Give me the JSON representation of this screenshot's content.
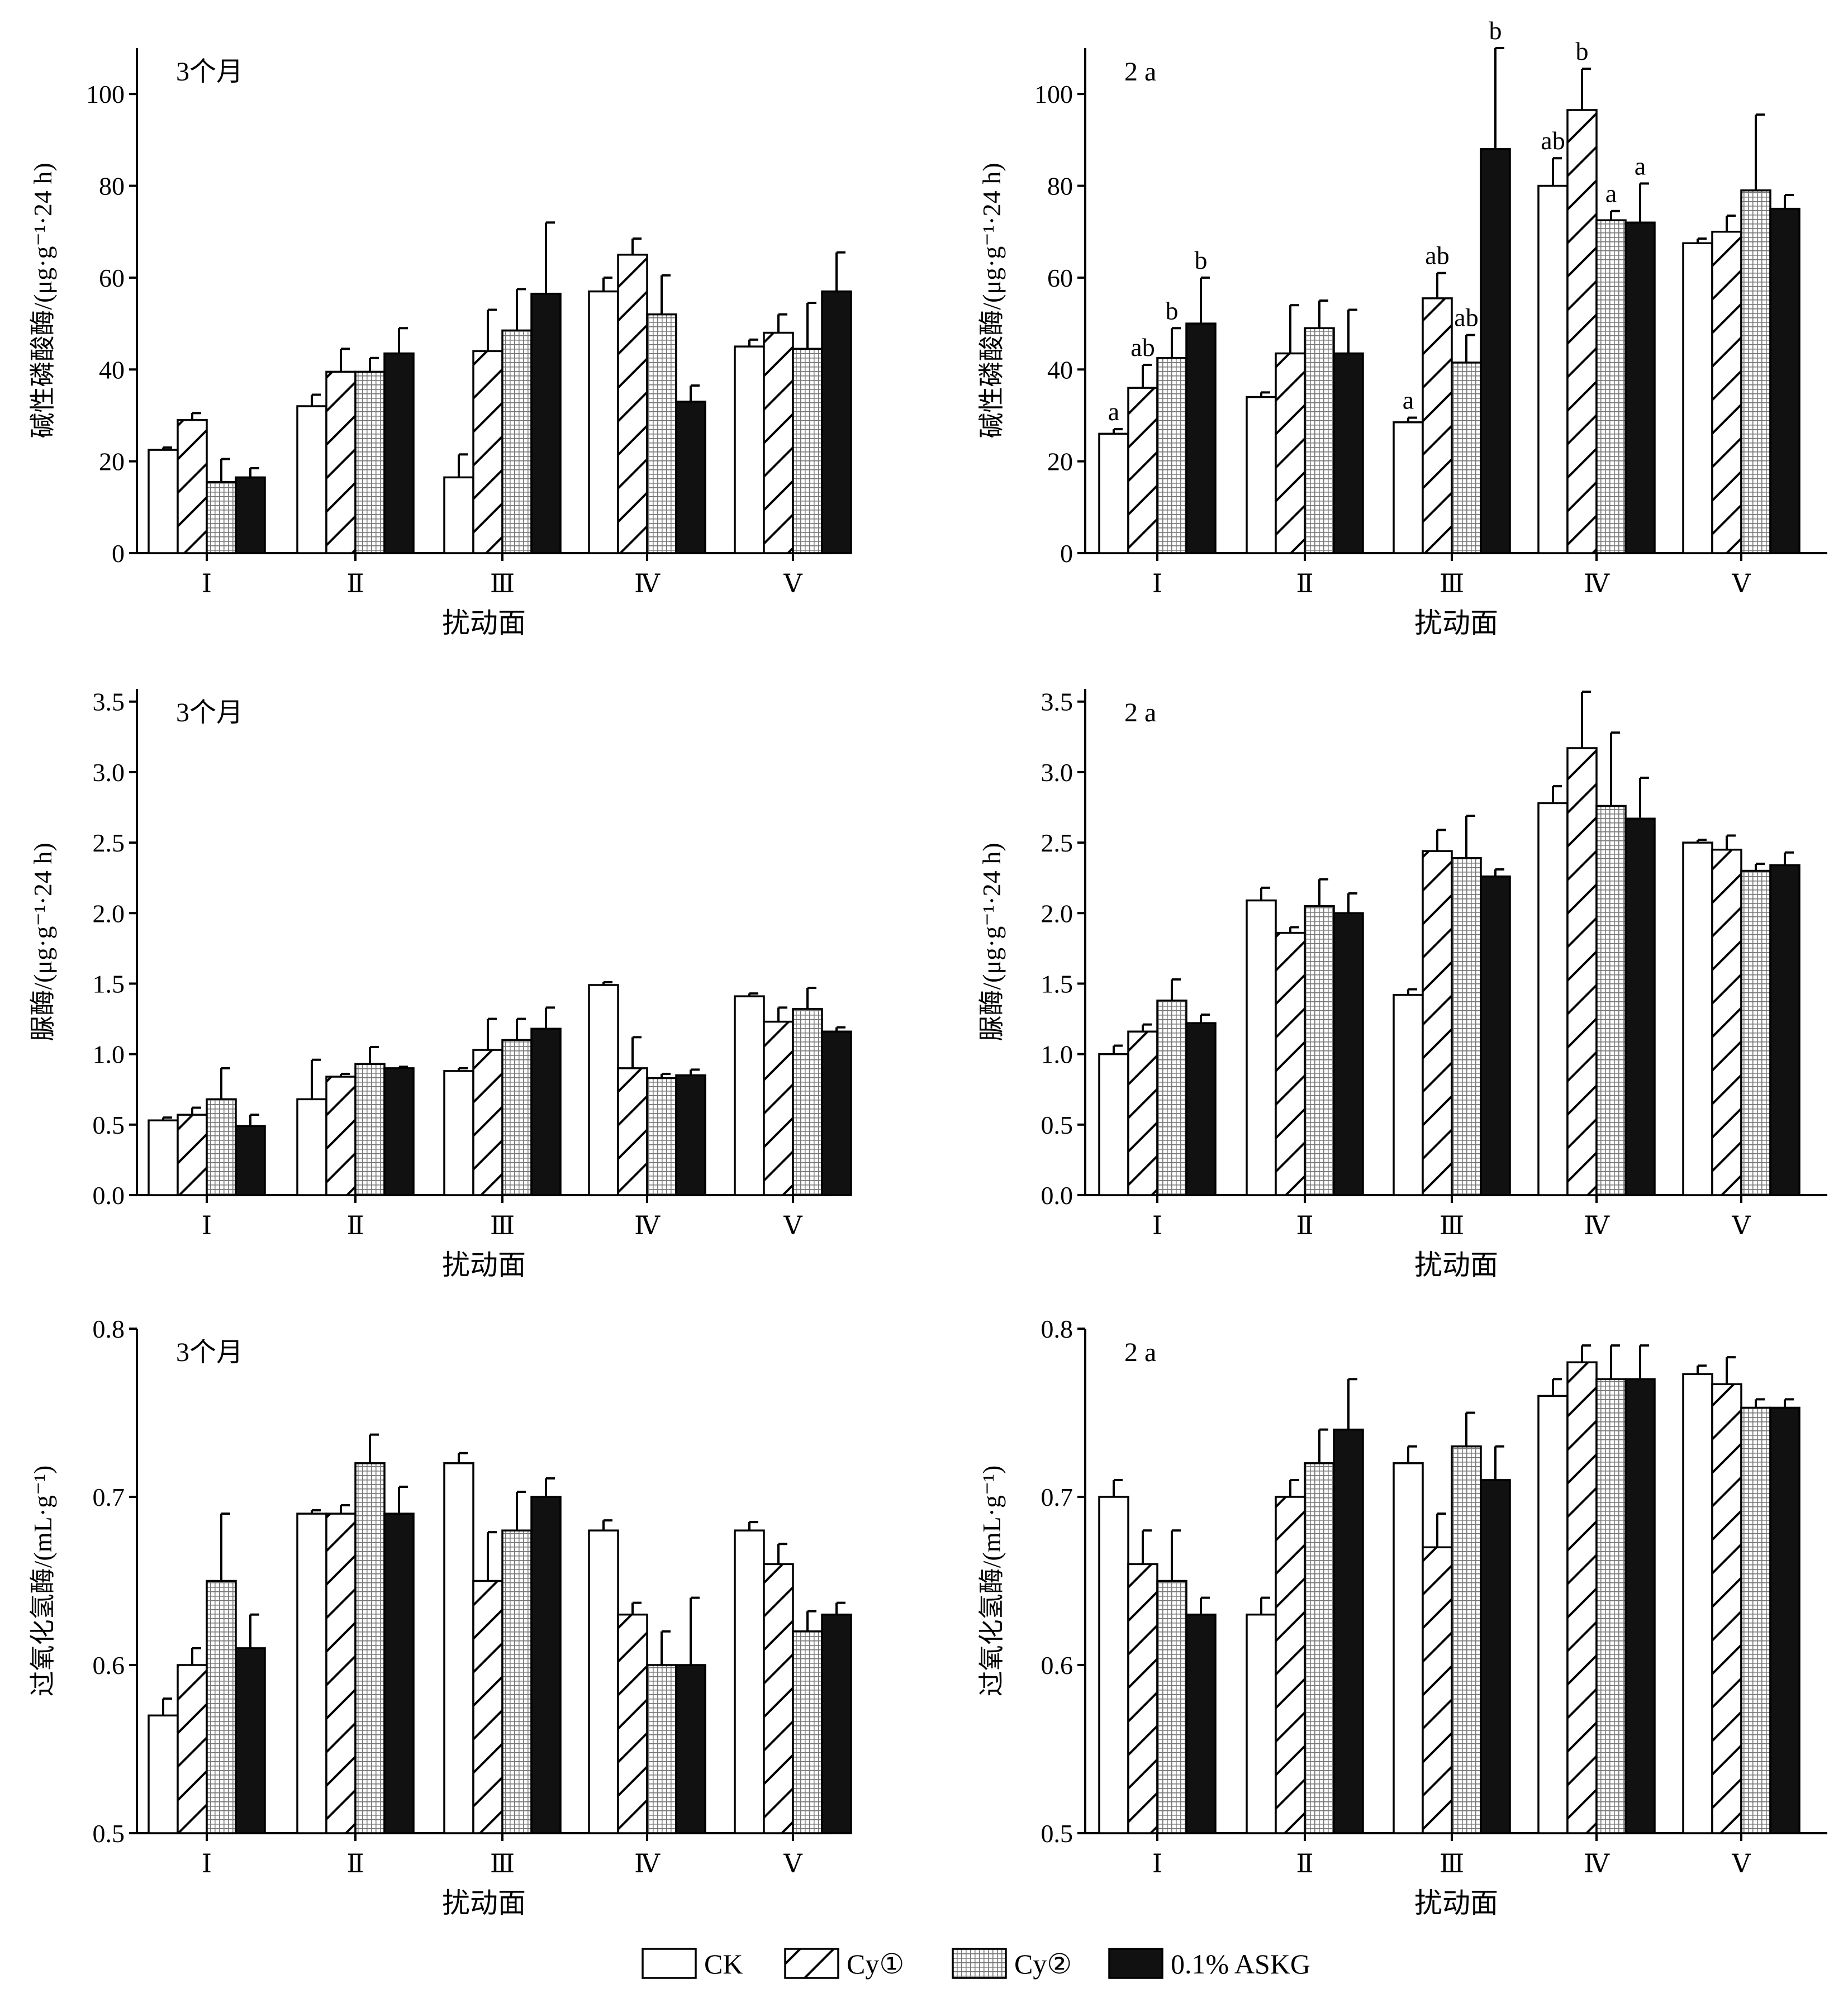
{
  "legend": [
    "CK",
    "Cy①",
    "Cy②",
    "0.1% ASKG"
  ],
  "colors": {
    "bar_stroke": "#000000",
    "ck": "#ffffff",
    "askg": "#111111"
  },
  "chart_data": [
    {
      "type": "bar",
      "tag": "3个月",
      "ylabel": "碱性磷酸酶/(μg·g⁻¹·24 h)",
      "xlabel": "扰动面",
      "categories": [
        "Ⅰ",
        "Ⅱ",
        "Ⅲ",
        "Ⅳ",
        "Ⅴ"
      ],
      "ylim": [
        0,
        110
      ],
      "yticks": [
        0,
        20,
        40,
        60,
        80,
        100
      ],
      "ytick_labels": [
        "0",
        "20",
        "40",
        "60",
        "80",
        "100"
      ],
      "series": [
        {
          "name": "CK",
          "values": [
            22.5,
            32,
            16.5,
            57,
            45
          ],
          "err_top": [
            23,
            34.5,
            21.5,
            60,
            46.5
          ]
        },
        {
          "name": "Cy①",
          "values": [
            29,
            39.5,
            44,
            65,
            48
          ],
          "err_top": [
            30.5,
            44.5,
            53,
            68.5,
            52
          ]
        },
        {
          "name": "Cy②",
          "values": [
            15.5,
            39.5,
            48.5,
            52,
            44.5
          ],
          "err_top": [
            20.5,
            42.5,
            57.5,
            60.5,
            54.5
          ]
        },
        {
          "name": "0.1% ASKG",
          "values": [
            16.5,
            43.5,
            56.5,
            33,
            57
          ],
          "err_top": [
            18.5,
            49,
            72,
            36.5,
            65.5
          ]
        }
      ]
    },
    {
      "type": "bar",
      "tag": "2 a",
      "ylabel": "碱性磷酸酶/(μg·g⁻¹·24 h)",
      "xlabel": "扰动面",
      "categories": [
        "Ⅰ",
        "Ⅱ",
        "Ⅲ",
        "Ⅳ",
        "Ⅴ"
      ],
      "ylim": [
        0,
        110
      ],
      "yticks": [
        0,
        20,
        40,
        60,
        80,
        100
      ],
      "ytick_labels": [
        "0",
        "20",
        "40",
        "60",
        "80",
        "100"
      ],
      "series": [
        {
          "name": "CK",
          "values": [
            26,
            34,
            28.5,
            80,
            67.5
          ],
          "err_top": [
            27,
            35,
            29.5,
            86,
            68.5
          ],
          "letters": [
            "a",
            "",
            "a",
            "ab",
            ""
          ]
        },
        {
          "name": "Cy①",
          "values": [
            36,
            43.5,
            55.5,
            96.5,
            70
          ],
          "err_top": [
            41,
            54,
            61,
            105.5,
            73.5
          ],
          "letters": [
            "ab",
            "",
            "ab",
            "b",
            ""
          ]
        },
        {
          "name": "Cy②",
          "values": [
            42.5,
            49,
            41.5,
            72.5,
            79
          ],
          "err_top": [
            49,
            55,
            47.5,
            74.5,
            95.5
          ],
          "letters": [
            "b",
            "",
            "ab",
            "a",
            ""
          ]
        },
        {
          "name": "0.1% ASKG",
          "values": [
            50,
            43.5,
            88,
            72,
            75
          ],
          "err_top": [
            60,
            53,
            110,
            80.5,
            78
          ],
          "letters": [
            "b",
            "",
            "b",
            "a",
            ""
          ]
        }
      ]
    },
    {
      "type": "bar",
      "tag": "3个月",
      "ylabel": "脲酶/(μg·g⁻¹·24 h)",
      "xlabel": "扰动面",
      "categories": [
        "Ⅰ",
        "Ⅱ",
        "Ⅲ",
        "Ⅳ",
        "Ⅴ"
      ],
      "ylim": [
        0,
        3.59
      ],
      "yticks": [
        0,
        0.5,
        1,
        1.5,
        2,
        2.5,
        3,
        3.5
      ],
      "ytick_labels": [
        "0.0",
        "0.5",
        "1.0",
        "1.5",
        "2.0",
        "2.5",
        "3.0",
        "3.5"
      ],
      "series": [
        {
          "name": "CK",
          "values": [
            0.53,
            0.68,
            0.88,
            1.49,
            1.41
          ],
          "err_top": [
            0.55,
            0.96,
            0.9,
            1.51,
            1.43
          ]
        },
        {
          "name": "Cy①",
          "values": [
            0.57,
            0.84,
            1.03,
            0.9,
            1.23
          ],
          "err_top": [
            0.62,
            0.86,
            1.25,
            1.12,
            1.33
          ]
        },
        {
          "name": "Cy②",
          "values": [
            0.68,
            0.93,
            1.1,
            0.83,
            1.32
          ],
          "err_top": [
            0.9,
            1.05,
            1.25,
            0.86,
            1.47
          ]
        },
        {
          "name": "0.1% ASKG",
          "values": [
            0.49,
            0.9,
            1.18,
            0.85,
            1.16
          ],
          "err_top": [
            0.57,
            0.91,
            1.33,
            0.89,
            1.19
          ]
        }
      ]
    },
    {
      "type": "bar",
      "tag": "2 a",
      "ylabel": "脲酶/(μg·g⁻¹·24 h)",
      "xlabel": "扰动面",
      "categories": [
        "Ⅰ",
        "Ⅱ",
        "Ⅲ",
        "Ⅳ",
        "Ⅴ"
      ],
      "ylim": [
        0,
        3.59
      ],
      "yticks": [
        0,
        0.5,
        1,
        1.5,
        2,
        2.5,
        3,
        3.5
      ],
      "ytick_labels": [
        "0.0",
        "0.5",
        "1.0",
        "1.5",
        "2.0",
        "2.5",
        "3.0",
        "3.5"
      ],
      "series": [
        {
          "name": "CK",
          "values": [
            1.0,
            2.09,
            1.42,
            2.78,
            2.5
          ],
          "err_top": [
            1.06,
            2.18,
            1.46,
            2.9,
            2.52
          ]
        },
        {
          "name": "Cy①",
          "values": [
            1.16,
            1.86,
            2.44,
            3.17,
            2.45
          ],
          "err_top": [
            1.21,
            1.9,
            2.59,
            3.57,
            2.55
          ]
        },
        {
          "name": "Cy②",
          "values": [
            1.38,
            2.05,
            2.39,
            2.76,
            2.3
          ],
          "err_top": [
            1.53,
            2.24,
            2.69,
            3.28,
            2.35
          ]
        },
        {
          "name": "0.1% ASKG",
          "values": [
            1.22,
            2.0,
            2.26,
            2.67,
            2.34
          ],
          "err_top": [
            1.28,
            2.14,
            2.31,
            2.96,
            2.43
          ]
        }
      ]
    },
    {
      "type": "bar",
      "tag": "3个月",
      "ylabel": "过氧化氢酶/(mL·g⁻¹)",
      "xlabel": "扰动面",
      "categories": [
        "Ⅰ",
        "Ⅱ",
        "Ⅲ",
        "Ⅳ",
        "Ⅴ"
      ],
      "ylim": [
        0.5,
        0.8
      ],
      "yticks": [
        0.5,
        0.6,
        0.7,
        0.8
      ],
      "ytick_labels": [
        "0.5",
        "0.6",
        "0.7",
        "0.8"
      ],
      "series": [
        {
          "name": "CK",
          "values": [
            0.57,
            0.69,
            0.72,
            0.68,
            0.68
          ],
          "err_top": [
            0.58,
            0.692,
            0.726,
            0.686,
            0.685
          ]
        },
        {
          "name": "Cy①",
          "values": [
            0.6,
            0.69,
            0.65,
            0.63,
            0.66
          ],
          "err_top": [
            0.61,
            0.695,
            0.679,
            0.637,
            0.672
          ]
        },
        {
          "name": "Cy②",
          "values": [
            0.65,
            0.72,
            0.68,
            0.6,
            0.62
          ],
          "err_top": [
            0.69,
            0.737,
            0.703,
            0.62,
            0.632
          ]
        },
        {
          "name": "0.1% ASKG",
          "values": [
            0.61,
            0.69,
            0.7,
            0.6,
            0.63
          ],
          "err_top": [
            0.63,
            0.706,
            0.711,
            0.64,
            0.637
          ]
        }
      ]
    },
    {
      "type": "bar",
      "tag": "2 a",
      "ylabel": "过氧化氢酶/(mL·g⁻¹)",
      "xlabel": "扰动面",
      "categories": [
        "Ⅰ",
        "Ⅱ",
        "Ⅲ",
        "Ⅳ",
        "Ⅴ"
      ],
      "ylim": [
        0.5,
        0.8
      ],
      "yticks": [
        0.5,
        0.6,
        0.7,
        0.8
      ],
      "ytick_labels": [
        "0.5",
        "0.6",
        "0.7",
        "0.8"
      ],
      "series": [
        {
          "name": "CK",
          "values": [
            0.7,
            0.63,
            0.72,
            0.76,
            0.773
          ],
          "err_top": [
            0.71,
            0.64,
            0.73,
            0.77,
            0.778
          ]
        },
        {
          "name": "Cy①",
          "values": [
            0.66,
            0.7,
            0.67,
            0.78,
            0.767
          ],
          "err_top": [
            0.68,
            0.71,
            0.69,
            0.79,
            0.783
          ]
        },
        {
          "name": "Cy②",
          "values": [
            0.65,
            0.72,
            0.73,
            0.77,
            0.753
          ],
          "err_top": [
            0.68,
            0.74,
            0.75,
            0.79,
            0.758
          ]
        },
        {
          "name": "0.1% ASKG",
          "values": [
            0.63,
            0.74,
            0.71,
            0.77,
            0.753
          ],
          "err_top": [
            0.64,
            0.77,
            0.73,
            0.79,
            0.758
          ]
        }
      ]
    }
  ]
}
